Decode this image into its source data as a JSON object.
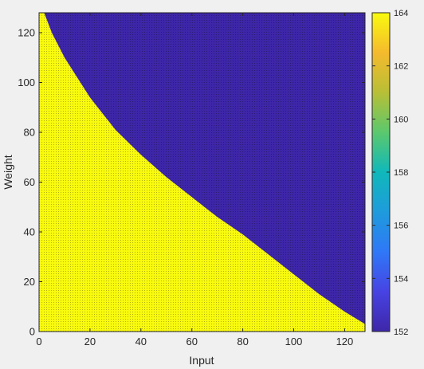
{
  "chart_data": {
    "type": "heatmap",
    "title": "",
    "xlabel": "Input",
    "ylabel": "Weight",
    "xlim": [
      0,
      128
    ],
    "ylim": [
      0,
      128
    ],
    "x_ticks": [
      0,
      20,
      40,
      60,
      80,
      100,
      120
    ],
    "y_ticks": [
      0,
      20,
      40,
      60,
      80,
      100,
      120
    ],
    "colorbar": {
      "colormap": "parula",
      "range": [
        152,
        164
      ],
      "ticks": [
        152,
        154,
        156,
        158,
        160,
        162,
        164
      ]
    },
    "low_value": 152,
    "high_value": 164,
    "low_color": "#3e26a8",
    "high_color": "#f9fb0e",
    "boundary": [
      {
        "x": 2,
        "y": 128
      },
      {
        "x": 5,
        "y": 120
      },
      {
        "x": 10,
        "y": 110
      },
      {
        "x": 15,
        "y": 102
      },
      {
        "x": 20,
        "y": 94
      },
      {
        "x": 30,
        "y": 81
      },
      {
        "x": 40,
        "y": 71
      },
      {
        "x": 50,
        "y": 62
      },
      {
        "x": 60,
        "y": 54
      },
      {
        "x": 70,
        "y": 46
      },
      {
        "x": 80,
        "y": 39
      },
      {
        "x": 90,
        "y": 31
      },
      {
        "x": 100,
        "y": 23
      },
      {
        "x": 110,
        "y": 15
      },
      {
        "x": 120,
        "y": 8
      },
      {
        "x": 128,
        "y": 3
      }
    ],
    "grid": false
  }
}
